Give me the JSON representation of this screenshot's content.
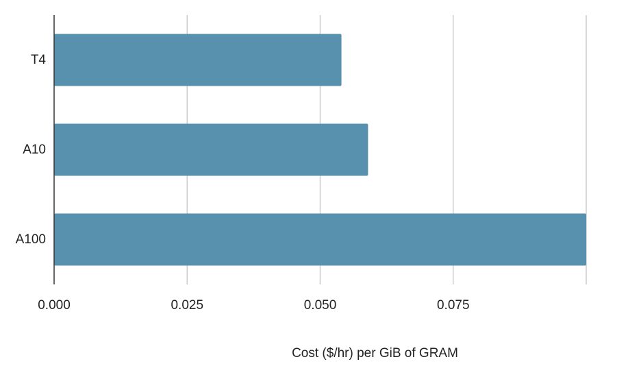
{
  "chart_data": {
    "type": "bar",
    "orientation": "horizontal",
    "categories": [
      "T4",
      "A10",
      "A100"
    ],
    "values": [
      0.054,
      0.059,
      0.1
    ],
    "title": "",
    "xlabel": "Cost ($/hr) per GiB of GRAM",
    "ylabel": "",
    "xlim": [
      0,
      0.1
    ],
    "x_ticks": [
      "0.000",
      "0.025",
      "0.050",
      "0.075"
    ],
    "x_tick_values": [
      0,
      0.025,
      0.05,
      0.075
    ],
    "grid": true,
    "legend": "none",
    "colors": {
      "bar": "#5891ae",
      "grid": "#cccccc",
      "axis": "#333333",
      "text": "#222222"
    }
  }
}
